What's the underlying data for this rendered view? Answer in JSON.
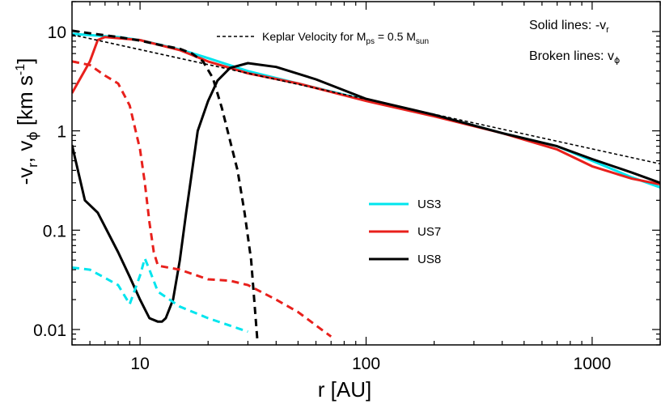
{
  "chart_data": {
    "type": "line",
    "xscale": "log",
    "yscale": "log",
    "xlim": [
      5,
      2000
    ],
    "ylim": [
      0.007,
      20
    ],
    "xlabel": "r [AU]",
    "ylabel": {
      "prefix": "-v",
      "r_sub": "r",
      "sep": ", v",
      "phi_sub": "ϕ",
      "units_pre": " [km s",
      "units_sup": "-1",
      "units_post": "]"
    },
    "xticks": [
      {
        "value": 10,
        "label": "10"
      },
      {
        "value": 100,
        "label": "100"
      },
      {
        "value": 1000,
        "label": "1000"
      }
    ],
    "yticks": [
      {
        "value": 10,
        "label": "10"
      },
      {
        "value": 1,
        "label": "1"
      },
      {
        "value": 0.1,
        "label": "0.1"
      },
      {
        "value": 0.01,
        "label": "0.01"
      }
    ],
    "annotations": {
      "solid": {
        "text": "Solid lines: -v",
        "sub": "r"
      },
      "broken": {
        "text": "Broken lines: v",
        "sub": "ϕ"
      },
      "keplar": {
        "text": "Keplar Velocity for M",
        "sub1": "ps",
        "mid": " = 0.5 M",
        "sub2": "sun"
      }
    },
    "legend": {
      "placement": "center",
      "items": [
        {
          "name": "US3",
          "color": "#00e5ee"
        },
        {
          "name": "US7",
          "color": "#e8201c"
        },
        {
          "name": "US8",
          "color": "#000000"
        }
      ]
    },
    "series": [
      {
        "name": "US3",
        "style": "solid",
        "color": "#00e5ee",
        "x": [
          5,
          6,
          8,
          10,
          15,
          20,
          30,
          50,
          100,
          200,
          400,
          700,
          1000,
          1500,
          2000
        ],
        "y": [
          9.5,
          9.2,
          8.8,
          8.2,
          6.6,
          5.4,
          4.0,
          3.0,
          2.05,
          1.45,
          0.95,
          0.7,
          0.5,
          0.34,
          0.27
        ]
      },
      {
        "name": "US7",
        "style": "solid",
        "color": "#e8201c",
        "x": [
          5,
          6,
          6.5,
          7,
          10,
          15,
          20,
          30,
          50,
          100,
          200,
          400,
          700,
          1000,
          1500,
          2000
        ],
        "y": [
          2.4,
          5.0,
          8.2,
          8.8,
          8.2,
          6.5,
          5.0,
          3.8,
          3.0,
          2.0,
          1.4,
          0.95,
          0.65,
          0.44,
          0.33,
          0.29
        ]
      },
      {
        "name": "US8",
        "style": "solid",
        "color": "#000000",
        "x": [
          5,
          5.7,
          6.5,
          8,
          9,
          10,
          11,
          12,
          12.5,
          13,
          14,
          15,
          16,
          17,
          18,
          20,
          22,
          25,
          30,
          40,
          60,
          100,
          200,
          400,
          700,
          1000,
          1500,
          2000
        ],
        "y": [
          0.72,
          0.2,
          0.15,
          0.06,
          0.034,
          0.02,
          0.013,
          0.012,
          0.012,
          0.013,
          0.02,
          0.05,
          0.15,
          0.4,
          1.0,
          2.0,
          3.2,
          4.3,
          4.8,
          4.4,
          3.3,
          2.1,
          1.45,
          0.95,
          0.7,
          0.52,
          0.38,
          0.3
        ]
      },
      {
        "name": "US3",
        "style": "dashed",
        "color": "#00e5ee",
        "x": [
          5,
          6,
          8,
          9,
          10,
          10.5,
          11,
          12,
          15,
          20,
          30
        ],
        "y": [
          0.042,
          0.04,
          0.028,
          0.018,
          0.035,
          0.052,
          0.04,
          0.024,
          0.017,
          0.013,
          0.0095
        ]
      },
      {
        "name": "US7",
        "style": "dashed",
        "color": "#e8201c",
        "x": [
          5,
          6,
          7,
          8,
          9,
          10,
          10.5,
          11,
          11.5,
          12,
          15,
          20,
          25,
          30,
          40,
          50,
          60,
          70
        ],
        "y": [
          5.0,
          4.6,
          3.6,
          3.0,
          1.8,
          0.65,
          0.3,
          0.12,
          0.06,
          0.044,
          0.04,
          0.032,
          0.031,
          0.028,
          0.02,
          0.015,
          0.011,
          0.0085
        ]
      },
      {
        "name": "US8",
        "style": "dashed",
        "color": "#000000",
        "x": [
          5,
          6,
          8,
          10,
          12,
          15,
          17,
          19,
          21,
          23,
          25,
          27,
          29,
          31,
          32,
          33
        ],
        "y": [
          10.2,
          9.6,
          8.8,
          8.1,
          7.4,
          6.7,
          6.0,
          5.0,
          3.4,
          1.7,
          0.8,
          0.4,
          0.15,
          0.05,
          0.02,
          0.008
        ]
      },
      {
        "name": "Keplar Velocity",
        "style": "dotted",
        "color": "#000000",
        "x": [
          5,
          2000
        ],
        "y": [
          9.3,
          0.465
        ]
      }
    ]
  }
}
